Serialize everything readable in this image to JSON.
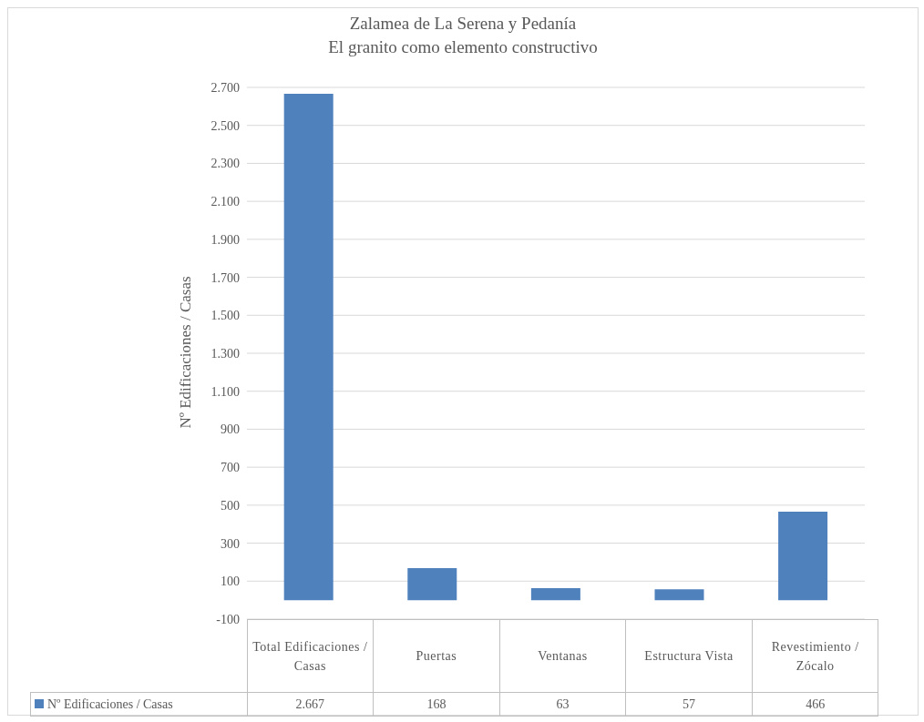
{
  "chart_data": {
    "type": "bar",
    "title": "Zalamea de La Serena y Pedanía",
    "subtitle": "El granito como elemento constructivo",
    "ylabel": "Nº Edificaciones / Casas",
    "categories": [
      "Total Edificaciones / Casas",
      "Puertas",
      "Ventanas",
      "Estructura Vista",
      "Revestimiento / Zócalo"
    ],
    "series": [
      {
        "name": "Nº Edificaciones /  Casas",
        "color": "#4f81bd",
        "values": [
          2667,
          168,
          63,
          57,
          466
        ],
        "value_labels": [
          "2.667",
          "168",
          "63",
          "57",
          "466"
        ]
      }
    ],
    "ylim": [
      -100,
      2700
    ],
    "yticks": [
      -100,
      100,
      300,
      500,
      700,
      900,
      {
        "value": 1100,
        "label": "1.100"
      },
      {
        "value": 1300,
        "label": "1.300"
      },
      {
        "value": 1500,
        "label": "1.500"
      },
      {
        "value": 1700,
        "label": "1.700"
      },
      {
        "value": 1900,
        "label": "1.900"
      },
      {
        "value": 2100,
        "label": "2.100"
      },
      {
        "value": 2300,
        "label": "2.300"
      },
      {
        "value": 2500,
        "label": "2.500"
      },
      {
        "value": 2700,
        "label": "2.700"
      }
    ],
    "grid": "y",
    "legend": "bottom"
  }
}
